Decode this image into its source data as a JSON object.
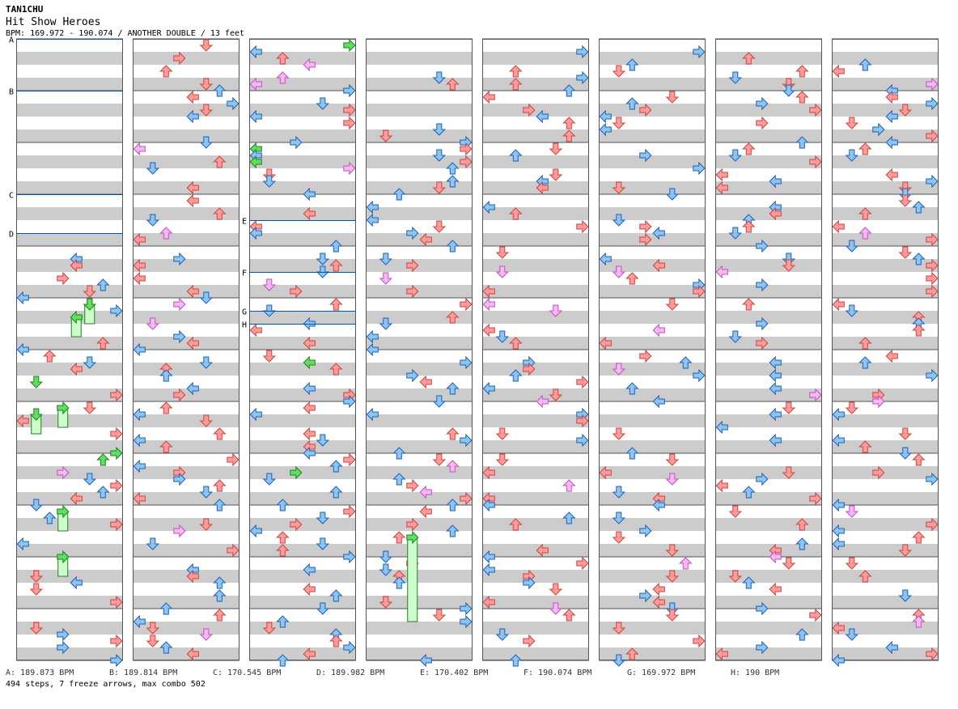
{
  "header": {
    "artist": "TAN1CHU",
    "title": "Hit Show Heroes",
    "info": "BPM: 169.972 - 190.074 / ANOTHER DOUBLE / 13 feet"
  },
  "colors": {
    "red_arrow": "#ff9c9c",
    "blue_arrow": "#8cc4f4",
    "pink_arrow": "#f8b8f4",
    "green_arrow": "#5ee05e",
    "freeze_body": "#ccffcc",
    "stripe": "#cccccc",
    "bpm_line": "#0055aa"
  },
  "chart_data": {
    "type": "table",
    "description_text": "step chart",
    "lanes": 8,
    "columns": 8,
    "bpm_markers": [
      {
        "label": "A",
        "column": 1,
        "beat": 0
      },
      {
        "label": "B",
        "column": 1,
        "beat": 4
      },
      {
        "label": "C",
        "column": 1,
        "beat": 12
      },
      {
        "label": "D",
        "column": 1,
        "beat": 15
      },
      {
        "label": "E",
        "column": 3,
        "beat": 14
      },
      {
        "label": "F",
        "column": 3,
        "beat": 18
      },
      {
        "label": "G",
        "column": 3,
        "beat": 21
      },
      {
        "label": "H",
        "column": 3,
        "beat": 22
      }
    ],
    "bpm_list": [
      {
        "label": "A",
        "text": "A: 189.873 BPM"
      },
      {
        "label": "B",
        "text": "B: 189.814 BPM"
      },
      {
        "label": "C",
        "text": "C: 170.545 BPM"
      },
      {
        "label": "D",
        "text": "D: 189.982 BPM"
      },
      {
        "label": "E",
        "text": "E: 170.402 BPM"
      },
      {
        "label": "F",
        "text": "F: 190.074 BPM"
      },
      {
        "label": "G",
        "text": "G: 169.972 BPM"
      },
      {
        "label": "H",
        "text": "H: 190 BPM"
      }
    ],
    "summary": "494 steps, 7 freeze arrows, max combo 502"
  }
}
